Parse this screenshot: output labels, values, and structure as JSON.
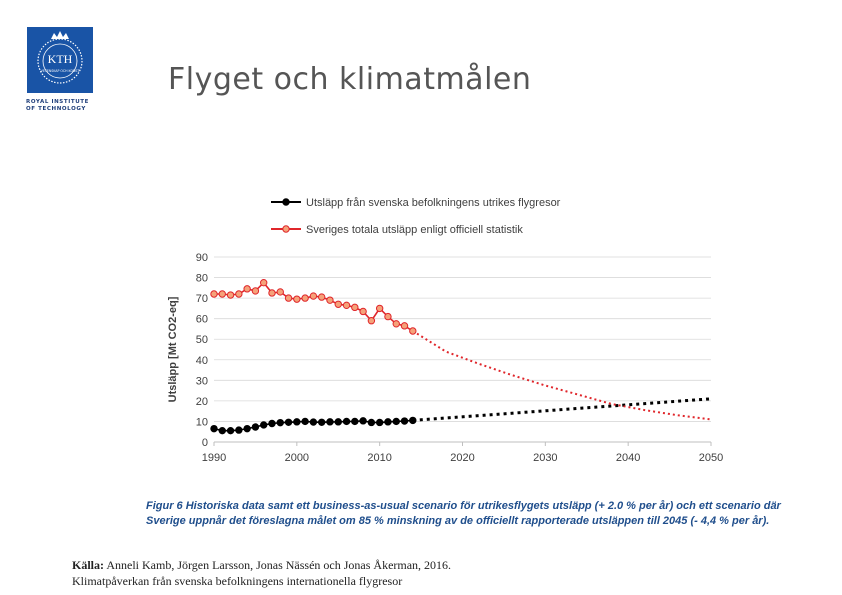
{
  "header": {
    "title": "Flyget och klimatmålen",
    "logo_text": "KTH",
    "logo_motto": "VETENSKAP OCH KONST",
    "logo_subtitle": "ROYAL INSTITUTE OF TECHNOLOGY"
  },
  "chart_data": {
    "type": "line",
    "title": "",
    "xlabel": "",
    "ylabel": "Utsläpp [Mt CO2-eq]",
    "xlim": [
      1990,
      2050
    ],
    "ylim": [
      0,
      90
    ],
    "xticks": [
      1990,
      2000,
      2010,
      2020,
      2030,
      2040,
      2050
    ],
    "yticks": [
      0,
      10,
      20,
      30,
      40,
      50,
      60,
      70,
      80,
      90
    ],
    "grid": true,
    "legend_position": "top",
    "series": [
      {
        "name": "Utsläpp från svenska befolkningens utrikes flygresor",
        "color": "#000000",
        "marker_fill": "#000000",
        "historical": {
          "x": [
            1990,
            1991,
            1992,
            1993,
            1994,
            1995,
            1996,
            1997,
            1998,
            1999,
            2000,
            2001,
            2002,
            2003,
            2004,
            2005,
            2006,
            2007,
            2008,
            2009,
            2010,
            2011,
            2012,
            2013,
            2014
          ],
          "y": [
            6.5,
            5.5,
            5.5,
            5.8,
            6.5,
            7.3,
            8.3,
            9.0,
            9.4,
            9.6,
            9.8,
            10.0,
            9.7,
            9.6,
            9.8,
            9.8,
            10.0,
            10.0,
            10.3,
            9.5,
            9.5,
            9.8,
            10.0,
            10.2,
            10.5
          ]
        },
        "projection": {
          "x": [
            2014,
            2050
          ],
          "y": [
            10.5,
            21.0
          ],
          "style": "dotted"
        }
      },
      {
        "name": "Sveriges totala utsläpp enligt officiell statistik",
        "color": "#e0262b",
        "marker_fill": "#f5a27a",
        "historical": {
          "x": [
            1990,
            1991,
            1992,
            1993,
            1994,
            1995,
            1996,
            1997,
            1998,
            1999,
            2000,
            2001,
            2002,
            2003,
            2004,
            2005,
            2006,
            2007,
            2008,
            2009,
            2010,
            2011,
            2012,
            2013,
            2014
          ],
          "y": [
            72,
            72,
            71.5,
            72,
            74.5,
            73.5,
            77.5,
            72.5,
            73,
            70,
            69.5,
            70,
            71,
            70.5,
            69,
            67,
            66.5,
            65.5,
            63.5,
            59,
            65,
            61,
            57.5,
            56.5,
            54
          ]
        },
        "projection": {
          "x": [
            2014,
            2018,
            2022,
            2026,
            2030,
            2034,
            2038,
            2042,
            2046,
            2050
          ],
          "y": [
            54,
            44,
            38,
            32.5,
            27.5,
            23,
            18.5,
            15.5,
            13,
            11
          ],
          "style": "dotted"
        }
      }
    ]
  },
  "caption": "Figur 6 Historiska data samt ett business-as-usual scenario för utrikesflygets utsläpp (+ 2.0 % per år) och ett scenario där Sverige uppnår det föreslagna målet om 85 % minskning av de officiellt rapporterade utsläppen till 2045 (- 4,4 % per år).",
  "source": {
    "label": "Källa:",
    "line1": " Anneli Kamb, Jörgen Larsson, Jonas Nässén och Jonas Åkerman, 2016.",
    "line2": "Klimatpåverkan från svenska befolkningens internationella flygresor"
  }
}
